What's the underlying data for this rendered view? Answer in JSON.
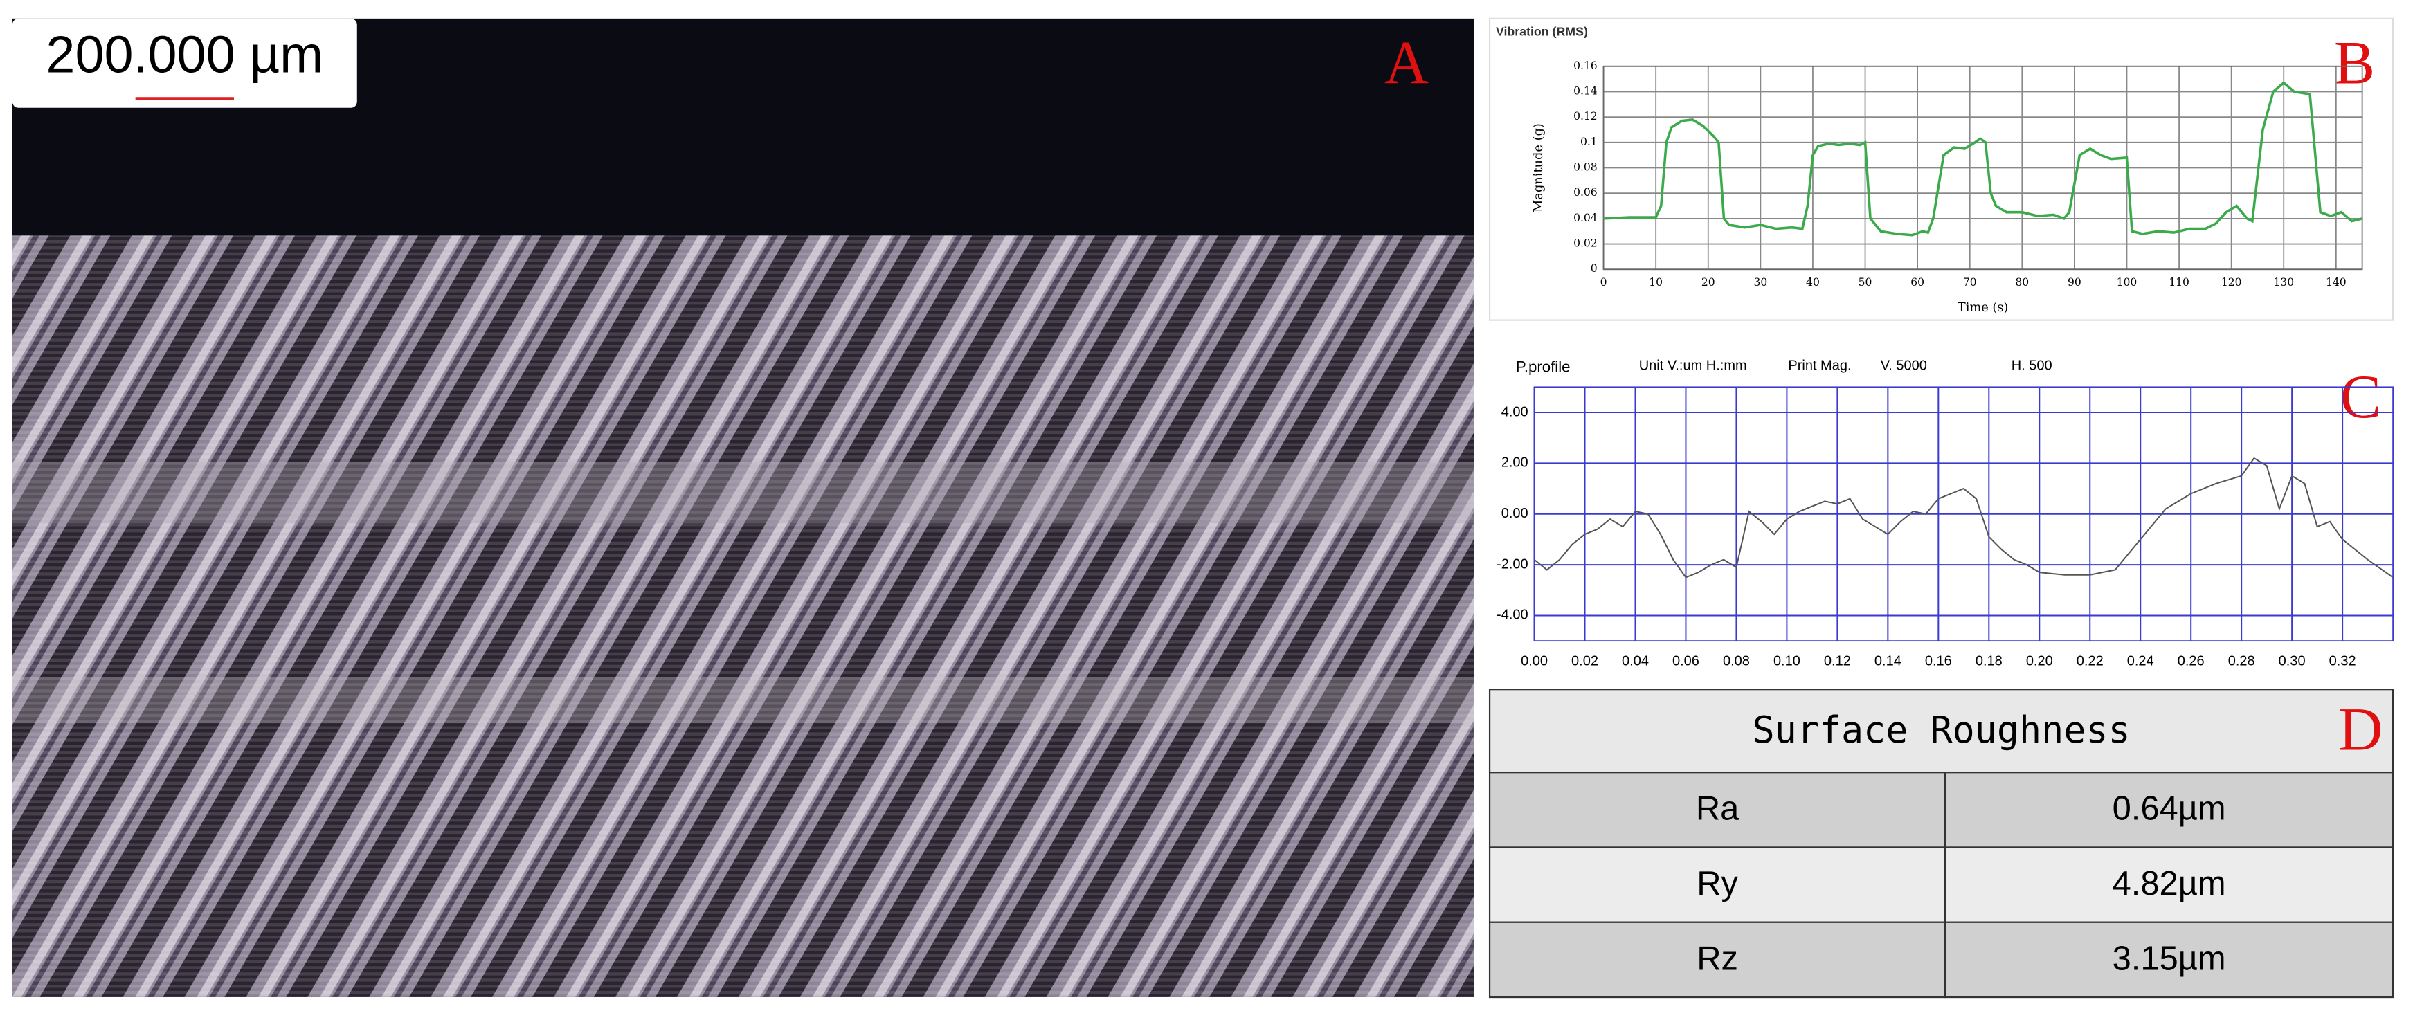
{
  "panels": [
    "A",
    "B",
    "C",
    "D"
  ],
  "scale_bar": "200.000 µm",
  "chart_data": [
    {
      "type": "line",
      "title": "Vibration (RMS)",
      "y_label": "Magnitude (g)",
      "x_label": "Time (s)",
      "color": "#3aaa4a",
      "grid": true,
      "xlim": [
        0,
        145
      ],
      "ylim": [
        0,
        0.16
      ],
      "xticks": [
        0,
        10,
        20,
        30,
        40,
        50,
        60,
        70,
        80,
        90,
        100,
        110,
        120,
        130,
        140
      ],
      "yticks": [
        0,
        0.02,
        0.04,
        0.06,
        0.08,
        0.1,
        0.12,
        0.14,
        0.16
      ],
      "x": [
        0,
        5,
        10,
        11,
        12,
        13,
        15,
        17,
        19,
        21,
        22,
        23,
        24,
        27,
        30,
        33,
        36,
        38,
        39,
        40,
        41,
        43,
        45,
        47,
        49,
        50,
        51,
        53,
        56,
        59,
        61,
        62,
        63,
        65,
        67,
        69,
        71,
        72,
        73,
        74,
        75,
        77,
        80,
        83,
        86,
        88,
        89,
        91,
        93,
        95,
        97,
        100,
        101,
        103,
        106,
        109,
        112,
        115,
        117,
        119,
        121,
        123,
        124,
        126,
        128,
        130,
        132,
        135,
        137,
        139,
        141,
        143,
        145
      ],
      "values": [
        0.04,
        0.041,
        0.041,
        0.05,
        0.1,
        0.112,
        0.117,
        0.118,
        0.113,
        0.105,
        0.1,
        0.04,
        0.035,
        0.033,
        0.035,
        0.032,
        0.033,
        0.032,
        0.05,
        0.09,
        0.097,
        0.099,
        0.098,
        0.099,
        0.098,
        0.1,
        0.04,
        0.03,
        0.028,
        0.027,
        0.03,
        0.029,
        0.04,
        0.09,
        0.096,
        0.095,
        0.1,
        0.103,
        0.1,
        0.06,
        0.05,
        0.045,
        0.045,
        0.042,
        0.043,
        0.04,
        0.045,
        0.09,
        0.095,
        0.09,
        0.087,
        0.088,
        0.03,
        0.028,
        0.03,
        0.029,
        0.032,
        0.032,
        0.036,
        0.045,
        0.05,
        0.04,
        0.038,
        0.11,
        0.14,
        0.147,
        0.14,
        0.138,
        0.045,
        0.042,
        0.045,
        0.038,
        0.04
      ]
    },
    {
      "type": "line",
      "title": "P.profile",
      "annotations": [
        "Unit V.:um H.:mm",
        "Print Mag.",
        "V.  5000",
        "H.  500"
      ],
      "color": "#555555",
      "grid": true,
      "xlim": [
        0,
        0.34
      ],
      "ylim": [
        -5,
        5
      ],
      "xticks": [
        {
          "value": 0,
          "label": "0.00"
        },
        {
          "value": 0.02,
          "label": "0.02"
        },
        {
          "value": 0.04,
          "label": "0.04"
        },
        {
          "value": 0.06,
          "label": "0.06"
        },
        {
          "value": 0.08,
          "label": "0.08"
        },
        {
          "value": 0.1,
          "label": "0.10"
        },
        {
          "value": 0.12,
          "label": "0.12"
        },
        {
          "value": 0.14,
          "label": "0.14"
        },
        {
          "value": 0.16,
          "label": "0.16"
        },
        {
          "value": 0.18,
          "label": "0.18"
        },
        {
          "value": 0.2,
          "label": "0.20"
        },
        {
          "value": 0.22,
          "label": "0.22"
        },
        {
          "value": 0.24,
          "label": "0.24"
        },
        {
          "value": 0.26,
          "label": "0.26"
        },
        {
          "value": 0.28,
          "label": "0.28"
        },
        {
          "value": 0.3,
          "label": "0.30"
        },
        {
          "value": 0.32,
          "label": "0.32"
        }
      ],
      "yticks": [
        {
          "value": 4,
          "label": "4.00"
        },
        {
          "value": 2,
          "label": "2.00"
        },
        {
          "value": 0,
          "label": "0.00"
        },
        {
          "value": -2,
          "label": "-2.00"
        },
        {
          "value": -4,
          "label": "-4.00"
        }
      ],
      "x": [
        0,
        0.005,
        0.01,
        0.015,
        0.02,
        0.025,
        0.03,
        0.035,
        0.04,
        0.045,
        0.05,
        0.055,
        0.06,
        0.065,
        0.07,
        0.075,
        0.08,
        0.085,
        0.09,
        0.095,
        0.1,
        0.105,
        0.11,
        0.115,
        0.12,
        0.125,
        0.13,
        0.135,
        0.14,
        0.145,
        0.15,
        0.155,
        0.16,
        0.165,
        0.17,
        0.175,
        0.18,
        0.185,
        0.19,
        0.195,
        0.2,
        0.21,
        0.22,
        0.23,
        0.235,
        0.24,
        0.25,
        0.26,
        0.27,
        0.28,
        0.285,
        0.29,
        0.295,
        0.3,
        0.305,
        0.31,
        0.315,
        0.32,
        0.33,
        0.34
      ],
      "values": [
        -1.8,
        -2.2,
        -1.8,
        -1.2,
        -0.8,
        -0.6,
        -0.2,
        -0.5,
        0.1,
        0,
        -0.8,
        -1.8,
        -2.5,
        -2.3,
        -2,
        -1.8,
        -2.1,
        0.1,
        -0.3,
        -0.8,
        -0.2,
        0.1,
        0.3,
        0.5,
        0.4,
        0.6,
        -0.2,
        -0.5,
        -0.8,
        -0.3,
        0.1,
        0,
        0.6,
        0.8,
        1,
        0.6,
        -0.9,
        -1.4,
        -1.8,
        -2,
        -2.3,
        -2.4,
        -2.4,
        -2.2,
        -1.6,
        -1,
        0.2,
        0.8,
        1.2,
        1.5,
        2.2,
        1.9,
        0.2,
        1.5,
        1.2,
        -0.5,
        -0.3,
        -1,
        -1.8,
        -2.5
      ]
    }
  ],
  "table": {
    "title": "Surface Roughness",
    "rows": [
      [
        "Ra",
        "0.64µm"
      ],
      [
        "Ry",
        "4.82µm"
      ],
      [
        "Rz",
        "3.15µm"
      ]
    ]
  }
}
